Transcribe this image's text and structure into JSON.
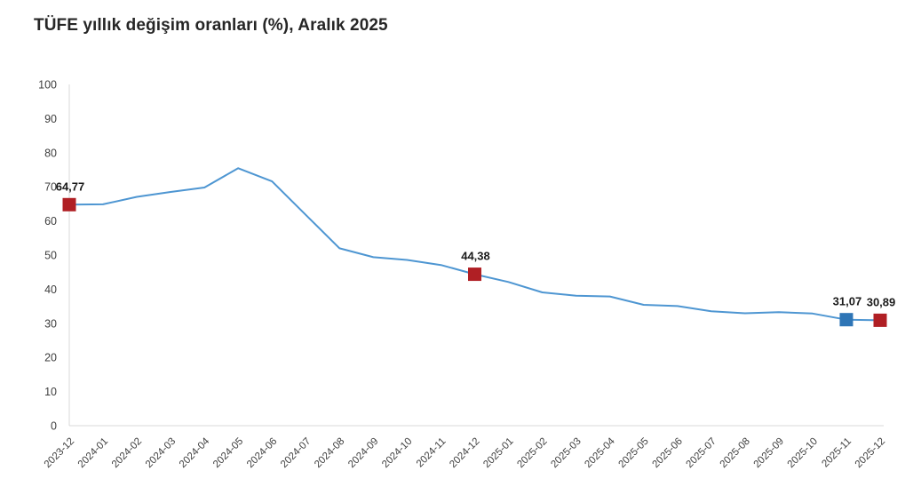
{
  "header": {
    "title": "TÜFE yıllık değişim oranları (%), Aralık 2025"
  },
  "colors": {
    "background": "#ffffff",
    "line": "#4E96D2",
    "axis": "#D9D9D9",
    "tick_label": "#404040",
    "data_label": "#1A1A1A",
    "marker_red": "#B01F24",
    "marker_blue": "#2E75B6",
    "title_text": "#262626"
  },
  "chart_data": {
    "type": "line",
    "title": "TÜFE yıllık değişim oranları (%), Aralık 2025",
    "xlabel": "",
    "ylabel": "",
    "ylim": [
      0,
      100
    ],
    "ytick_step": 10,
    "grid": false,
    "legend_position": "none",
    "x": [
      "2023-12",
      "2024-01",
      "2024-02",
      "2024-03",
      "2024-04",
      "2024-05",
      "2024-06",
      "2024-07",
      "2024-08",
      "2024-09",
      "2024-10",
      "2024-11",
      "2024-12",
      "2025-01",
      "2025-02",
      "2025-03",
      "2025-04",
      "2025-05",
      "2025-06",
      "2025-07",
      "2025-08",
      "2025-09",
      "2025-10",
      "2025-11",
      "2025-12"
    ],
    "series": [
      {
        "name": "TÜFE yıllık değişim oranı (%)",
        "values": [
          64.77,
          64.86,
          67.07,
          68.5,
          69.8,
          75.45,
          71.6,
          61.78,
          51.97,
          49.38,
          48.58,
          47.09,
          44.38,
          42.12,
          39.05,
          38.1,
          37.86,
          35.41,
          35.05,
          33.52,
          32.95,
          33.29,
          32.87,
          31.07,
          30.89
        ]
      }
    ],
    "marked_points": [
      {
        "x": "2023-12",
        "value": 64.77,
        "label": "64,77",
        "color": "#B01F24"
      },
      {
        "x": "2024-12",
        "value": 44.38,
        "label": "44,38",
        "color": "#B01F24"
      },
      {
        "x": "2025-11",
        "value": 31.07,
        "label": "31,07",
        "color": "#2E75B6"
      },
      {
        "x": "2025-12",
        "value": 30.89,
        "label": "30,89",
        "color": "#B01F24"
      }
    ]
  }
}
